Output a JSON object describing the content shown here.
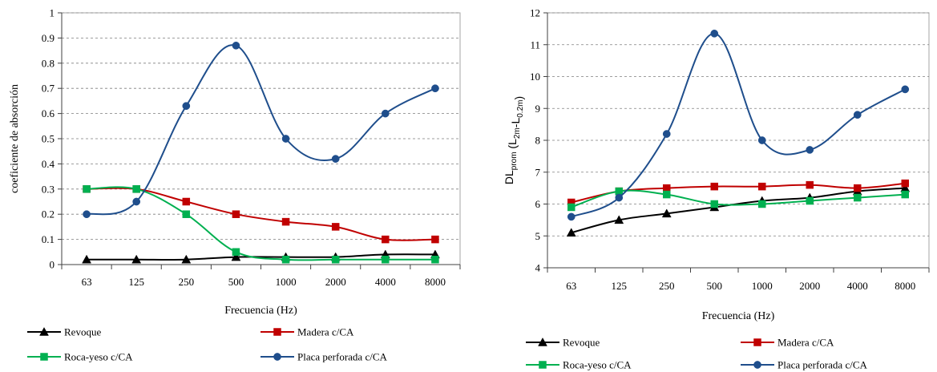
{
  "chart_data": [
    {
      "type": "line",
      "title": "",
      "xlabel": "Frecuencia (Hz)",
      "ylabel": "coeficiente de absorción",
      "categories": [
        "63",
        "125",
        "250",
        "500",
        "1000",
        "2000",
        "4000",
        "8000"
      ],
      "ylim": [
        0,
        1
      ],
      "yticks": [
        "0",
        "0.1",
        "0.2",
        "0.3",
        "0.4",
        "0.5",
        "0.6",
        "0.7",
        "0.8",
        "0.9",
        "1"
      ],
      "grid": true,
      "legend_position": "bottom",
      "series": [
        {
          "name": "Revoque",
          "color": "#000000",
          "marker": "triangle",
          "values": [
            0.02,
            0.02,
            0.02,
            0.03,
            0.03,
            0.03,
            0.04,
            0.04
          ]
        },
        {
          "name": "Madera c/CA",
          "color": "#c00000",
          "marker": "square",
          "values": [
            0.3,
            0.3,
            0.25,
            0.2,
            0.17,
            0.15,
            0.1,
            0.1
          ]
        },
        {
          "name": "Roca-yeso c/CA",
          "color": "#00b050",
          "marker": "square",
          "values": [
            0.3,
            0.3,
            0.2,
            0.05,
            0.02,
            0.02,
            0.02,
            0.02
          ]
        },
        {
          "name": "Placa perforada c/CA",
          "color": "#1f4e8c",
          "marker": "circle",
          "values": [
            0.2,
            0.25,
            0.63,
            0.87,
            0.5,
            0.42,
            0.6,
            0.7
          ]
        }
      ]
    },
    {
      "type": "line",
      "title": "",
      "xlabel": "Frecuencia (Hz)",
      "ylabel_main": "DL",
      "ylabel_main_sub": "prom",
      "ylabel_paren_open": "(L",
      "ylabel_sub1": "2m",
      "ylabel_mid": "-L",
      "ylabel_sub2": "0.2m",
      "ylabel_paren_close": ")",
      "categories": [
        "63",
        "125",
        "250",
        "500",
        "1000",
        "2000",
        "4000",
        "8000"
      ],
      "ylim": [
        4,
        12
      ],
      "yticks": [
        "4",
        "5",
        "6",
        "7",
        "8",
        "9",
        "10",
        "11",
        "12"
      ],
      "grid": true,
      "legend_position": "bottom",
      "series": [
        {
          "name": "Revoque",
          "color": "#000000",
          "marker": "triangle",
          "values": [
            5.1,
            5.5,
            5.7,
            5.9,
            6.1,
            6.2,
            6.4,
            6.5
          ]
        },
        {
          "name": "Madera c/CA",
          "color": "#c00000",
          "marker": "square",
          "values": [
            6.05,
            6.4,
            6.5,
            6.55,
            6.55,
            6.6,
            6.5,
            6.65
          ]
        },
        {
          "name": "Roca-yeso c/CA",
          "color": "#00b050",
          "marker": "square",
          "values": [
            5.9,
            6.4,
            6.3,
            6.0,
            6.0,
            6.1,
            6.2,
            6.3
          ]
        },
        {
          "name": "Placa perforada c/CA",
          "color": "#1f4e8c",
          "marker": "circle",
          "values": [
            5.6,
            6.2,
            8.2,
            11.35,
            8.0,
            7.7,
            8.8,
            9.6
          ]
        }
      ]
    }
  ]
}
